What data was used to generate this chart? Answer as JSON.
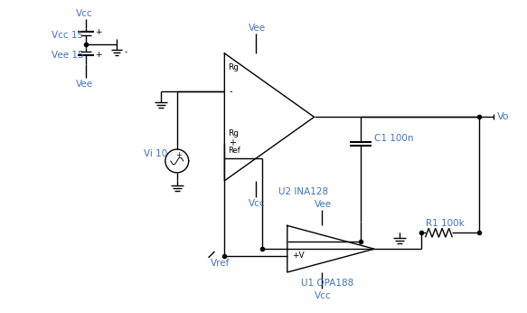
{
  "bg_color": "#ffffff",
  "line_color": "#000000",
  "text_color": "#4472c4",
  "fig_width": 5.83,
  "fig_height": 3.46,
  "dpi": 100,
  "vcc_label": "Vcc",
  "vee_label": "Vee",
  "vcc15_label": "Vcc 15",
  "vee15_label": "Vee 15",
  "vi_label": "Vi 10",
  "u2_label": "U2 INA128",
  "u1_label": "U1 OPA188",
  "vo_label": "Vo",
  "vref_label": "Vref",
  "c1_label": "C1 100n",
  "r1_label": "R1 100k",
  "rg_top_label": "Rg",
  "rg_bot_label": "Rg",
  "ref_label": "Ref",
  "vcc2_label": "Vcc",
  "vee2_label": "Vee",
  "vcc3_label": "Vcc",
  "vee3_label": "Vee"
}
